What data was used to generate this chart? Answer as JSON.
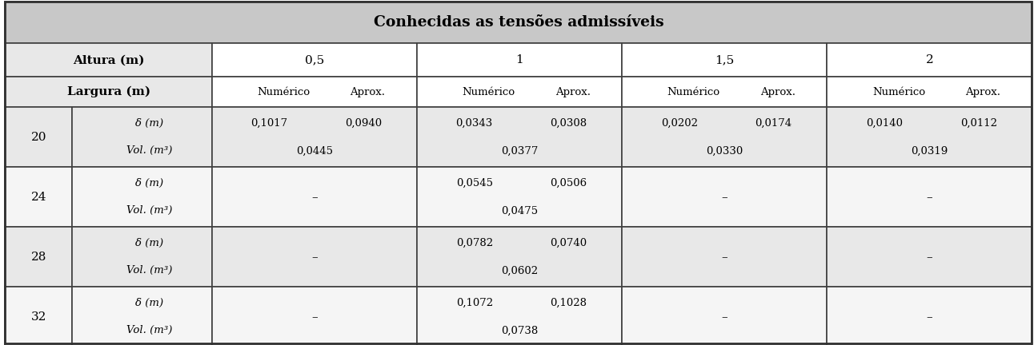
{
  "title": "Conhecidas as tensões admissíveis",
  "header_bg": "#c8c8c8",
  "subheader_bg": "#e8e8e8",
  "row_bg_even": "#e8e8e8",
  "row_bg_odd": "#f5f5f5",
  "figsize": [
    12.92,
    4.32
  ],
  "dpi": 100,
  "data": {
    "20": {
      "0.5": {
        "num_delta": "0,1017",
        "aprox_delta": "0,0940",
        "vol": "0,0445"
      },
      "1": {
        "num_delta": "0,0343",
        "aprox_delta": "0,0308",
        "vol": "0,0377"
      },
      "1.5": {
        "num_delta": "0,0202",
        "aprox_delta": "0,0174",
        "vol": "0,0330"
      },
      "2": {
        "num_delta": "0,0140",
        "aprox_delta": "0,0112",
        "vol": "0,0319"
      }
    },
    "24": {
      "0.5": {
        "num_delta": "–",
        "aprox_delta": "",
        "vol": ""
      },
      "1": {
        "num_delta": "0,0545",
        "aprox_delta": "0,0506",
        "vol": "0,0475"
      },
      "1.5": {
        "num_delta": "–",
        "aprox_delta": "",
        "vol": ""
      },
      "2": {
        "num_delta": "–",
        "aprox_delta": "",
        "vol": ""
      }
    },
    "28": {
      "0.5": {
        "num_delta": "–",
        "aprox_delta": "",
        "vol": ""
      },
      "1": {
        "num_delta": "0,0782",
        "aprox_delta": "0,0740",
        "vol": "0,0602"
      },
      "1.5": {
        "num_delta": "–",
        "aprox_delta": "",
        "vol": ""
      },
      "2": {
        "num_delta": "–",
        "aprox_delta": "",
        "vol": ""
      }
    },
    "32": {
      "0.5": {
        "num_delta": "–",
        "aprox_delta": "",
        "vol": ""
      },
      "1": {
        "num_delta": "0,1072",
        "aprox_delta": "0,1028",
        "vol": "0,0738"
      },
      "1.5": {
        "num_delta": "–",
        "aprox_delta": "",
        "vol": ""
      },
      "2": {
        "num_delta": "–",
        "aprox_delta": "",
        "vol": ""
      }
    }
  }
}
